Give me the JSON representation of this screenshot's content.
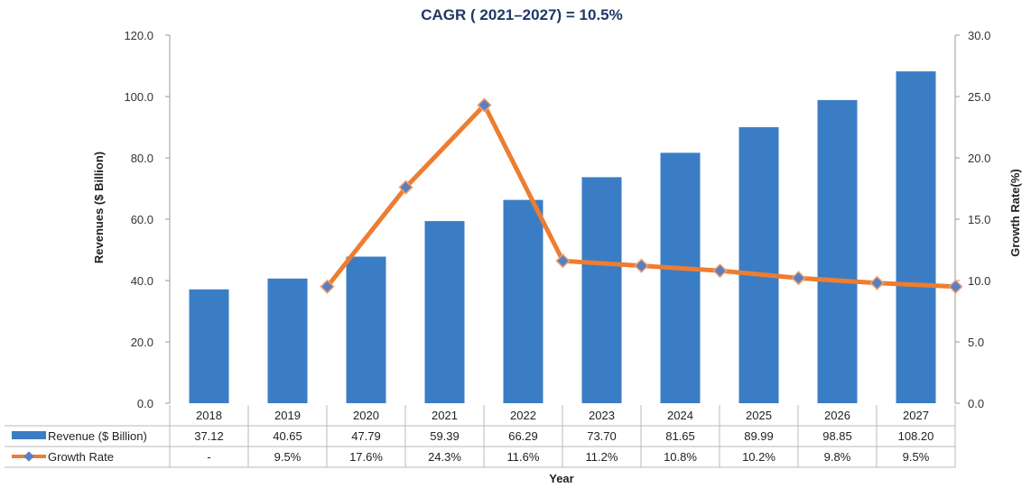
{
  "chart_data": {
    "type": "bar",
    "title": "CAGR ( 2021–2027) = 10.5%",
    "xlabel": "Year",
    "ylabel": "Revenues ($ Billion)",
    "y2label": "Growth Rate(%)",
    "ylim": [
      0,
      120
    ],
    "y2lim": [
      0,
      30
    ],
    "y_ticks": [
      "0.0",
      "20.0",
      "40.0",
      "60.0",
      "80.0",
      "100.0",
      "120.0"
    ],
    "y2_ticks": [
      "0.0",
      "5.0",
      "10.0",
      "15.0",
      "20.0",
      "25.0",
      "30.0"
    ],
    "categories": [
      "2018",
      "2019",
      "2020",
      "2021",
      "2022",
      "2023",
      "2024",
      "2025",
      "2026",
      "2027"
    ],
    "series": [
      {
        "name": "Revenue ($ Billion)",
        "type": "bar",
        "axis": "left",
        "color": "#3b7dc4",
        "values": [
          37.12,
          40.65,
          47.79,
          59.39,
          66.29,
          73.7,
          81.65,
          89.99,
          98.85,
          108.2
        ],
        "labels": [
          "37.12",
          "40.65",
          "47.79",
          "59.39",
          "66.29",
          "73.70",
          "81.65",
          "89.99",
          "98.85",
          "108.20"
        ]
      },
      {
        "name": "Growth Rate",
        "type": "line",
        "axis": "right",
        "color": "#ed7d31",
        "marker_color": "#5a7fc0",
        "values": [
          null,
          9.5,
          17.6,
          24.3,
          11.6,
          11.2,
          10.8,
          10.2,
          9.8,
          9.5
        ],
        "labels": [
          "-",
          "9.5%",
          "17.6%",
          "24.3%",
          "11.6%",
          "11.2%",
          "10.8%",
          "10.2%",
          "9.8%",
          "9.5%"
        ]
      }
    ],
    "legend": "data-table-bottom",
    "grid": false
  }
}
